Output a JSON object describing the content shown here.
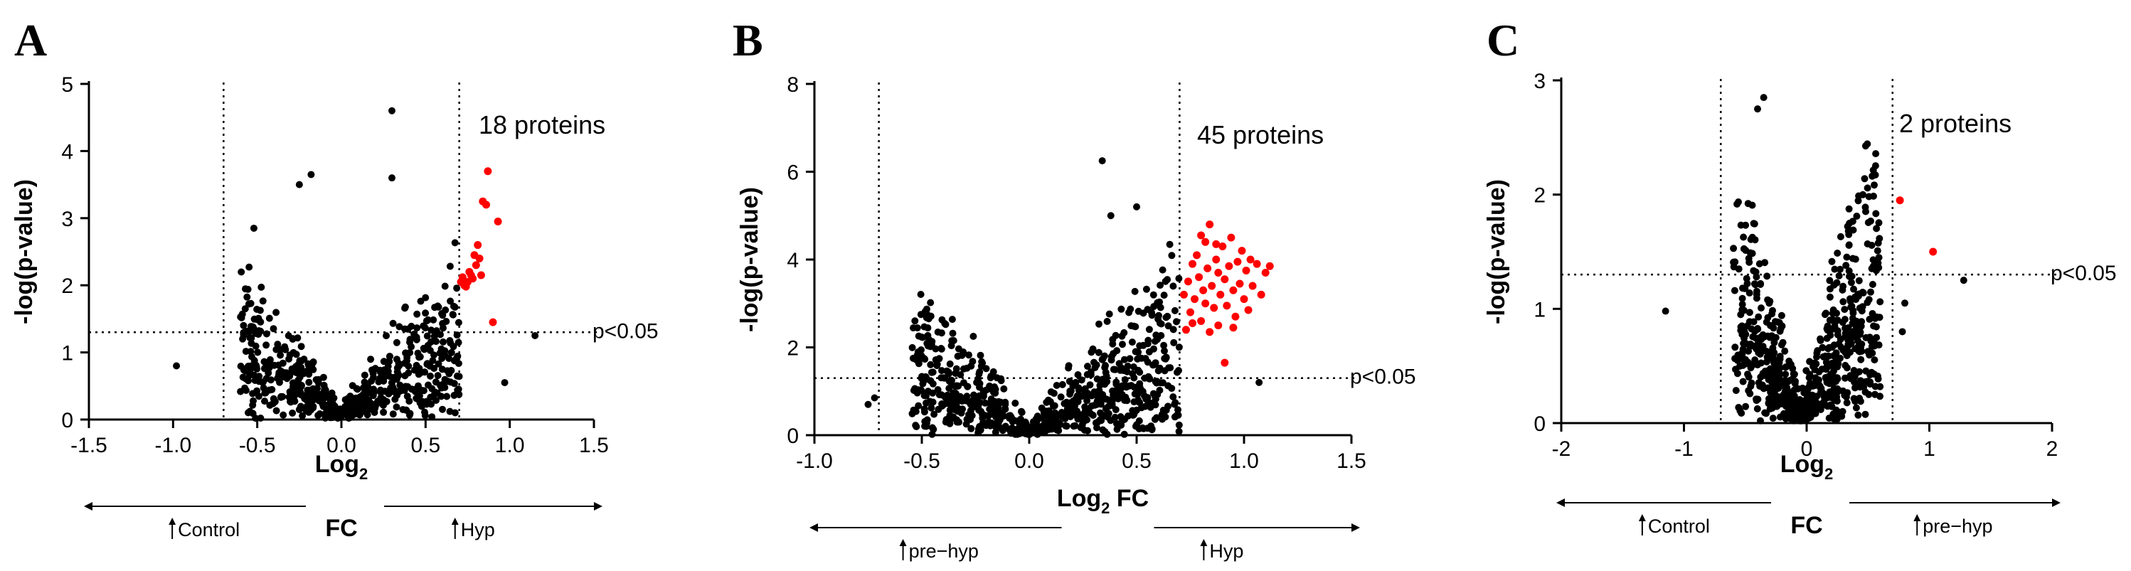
{
  "chart_data": [
    {
      "type": "scatter",
      "panel": "A",
      "title": "",
      "xlabel": "Log2",
      "xlabel_base": "Log",
      "xlabel_sub": "2",
      "xlabel_suffix": "FC",
      "ylabel": "-log(p-value)",
      "xlim": [
        -1.5,
        1.5
      ],
      "ylim": [
        0,
        5
      ],
      "xticks": [
        "-1.5",
        "-1.0",
        "-0.5",
        "0.0",
        "0.5",
        "1.0",
        "1.5"
      ],
      "xtick_values": [
        -1.5,
        -1.0,
        -0.5,
        0.0,
        0.5,
        1.0,
        1.5
      ],
      "yticks": [
        "0",
        "1",
        "2",
        "3",
        "4",
        "5"
      ],
      "ytick_values": [
        0,
        1,
        2,
        3,
        4,
        5
      ],
      "fc_thresholds": [
        -0.7,
        0.7
      ],
      "p_threshold": 1.3,
      "p_threshold_label": "p<0.05",
      "annotation": "18 proteins",
      "direction_left": "Control",
      "direction_right": "Hyp",
      "cloud": {
        "seed": 11,
        "n": 620,
        "xmin": -0.6,
        "xmax": 0.7,
        "center": 0.0,
        "vmin": 0.0,
        "scale": 1.9,
        "left_spread": 0.55,
        "right_spread": 0.6,
        "ymax": 3.4
      },
      "significant": [
        {
          "x": 0.71,
          "y": 2.05
        },
        {
          "x": 0.72,
          "y": 2.12
        },
        {
          "x": 0.74,
          "y": 1.98
        },
        {
          "x": 0.76,
          "y": 2.2
        },
        {
          "x": 0.78,
          "y": 2.1
        },
        {
          "x": 0.8,
          "y": 2.3
        },
        {
          "x": 0.81,
          "y": 2.6
        },
        {
          "x": 0.79,
          "y": 2.45
        },
        {
          "x": 0.73,
          "y": 2.0
        },
        {
          "x": 0.77,
          "y": 2.15
        },
        {
          "x": 0.83,
          "y": 2.15
        },
        {
          "x": 0.84,
          "y": 3.25
        },
        {
          "x": 0.86,
          "y": 3.2
        },
        {
          "x": 0.87,
          "y": 3.7
        },
        {
          "x": 0.93,
          "y": 2.95
        },
        {
          "x": 0.9,
          "y": 1.45
        },
        {
          "x": 0.75,
          "y": 2.05
        },
        {
          "x": 0.82,
          "y": 2.4
        }
      ],
      "extra_points": [
        {
          "x": -0.98,
          "y": 0.8
        },
        {
          "x": 0.3,
          "y": 4.6
        },
        {
          "x": 0.3,
          "y": 3.6
        },
        {
          "x": 0.97,
          "y": 0.55
        },
        {
          "x": 1.15,
          "y": 1.25
        },
        {
          "x": -0.52,
          "y": 2.85
        },
        {
          "x": -0.18,
          "y": 3.65
        },
        {
          "x": -0.25,
          "y": 3.5
        }
      ]
    },
    {
      "type": "scatter",
      "panel": "B",
      "title": "",
      "xlabel": "Log2 FC",
      "xlabel_base": "Log",
      "xlabel_sub": "2",
      "xlabel_suffix": " FC",
      "ylabel": "-log(p-value)",
      "xlim": [
        -1.0,
        1.5
      ],
      "ylim": [
        0,
        8
      ],
      "xticks": [
        "-1.0",
        "-0.5",
        "0.0",
        "0.5",
        "1.0",
        "1.5"
      ],
      "xtick_values": [
        -1.0,
        -0.5,
        0.0,
        0.5,
        1.0,
        1.5
      ],
      "yticks": [
        "0",
        "2",
        "4",
        "6",
        "8"
      ],
      "ytick_values": [
        0,
        2,
        4,
        6,
        8
      ],
      "fc_thresholds": [
        -0.7,
        0.7
      ],
      "p_threshold": 1.3,
      "p_threshold_label": "p<0.05",
      "annotation": "45 proteins",
      "direction_left": "pre−hyp",
      "direction_right": "Hyp",
      "cloud": {
        "seed": 23,
        "n": 760,
        "xmin": -0.55,
        "xmax": 0.7,
        "center": 0.0,
        "vmin": 0.0,
        "scale": 3.1,
        "left_spread": 0.5,
        "right_spread": 0.55,
        "ymax": 5.0
      },
      "significant": [
        {
          "x": 0.72,
          "y": 3.2
        },
        {
          "x": 0.74,
          "y": 3.5
        },
        {
          "x": 0.75,
          "y": 2.8
        },
        {
          "x": 0.76,
          "y": 3.9
        },
        {
          "x": 0.77,
          "y": 3.1
        },
        {
          "x": 0.78,
          "y": 4.1
        },
        {
          "x": 0.79,
          "y": 3.6
        },
        {
          "x": 0.8,
          "y": 2.6
        },
        {
          "x": 0.81,
          "y": 3.3
        },
        {
          "x": 0.82,
          "y": 4.4
        },
        {
          "x": 0.82,
          "y": 3.0
        },
        {
          "x": 0.83,
          "y": 3.8
        },
        {
          "x": 0.84,
          "y": 4.8
        },
        {
          "x": 0.85,
          "y": 3.4
        },
        {
          "x": 0.86,
          "y": 2.9
        },
        {
          "x": 0.87,
          "y": 4.0
        },
        {
          "x": 0.88,
          "y": 3.7
        },
        {
          "x": 0.88,
          "y": 2.5
        },
        {
          "x": 0.89,
          "y": 3.2
        },
        {
          "x": 0.9,
          "y": 4.3
        },
        {
          "x": 0.91,
          "y": 3.55
        },
        {
          "x": 0.92,
          "y": 2.95
        },
        {
          "x": 0.93,
          "y": 3.85
        },
        {
          "x": 0.94,
          "y": 4.5
        },
        {
          "x": 0.95,
          "y": 3.3
        },
        {
          "x": 0.96,
          "y": 2.7
        },
        {
          "x": 0.97,
          "y": 3.95
        },
        {
          "x": 0.98,
          "y": 3.45
        },
        {
          "x": 0.99,
          "y": 4.2
        },
        {
          "x": 1.0,
          "y": 3.1
        },
        {
          "x": 1.01,
          "y": 3.75
        },
        {
          "x": 1.02,
          "y": 2.85
        },
        {
          "x": 1.03,
          "y": 4.0
        },
        {
          "x": 1.04,
          "y": 3.4
        },
        {
          "x": 1.06,
          "y": 3.9
        },
        {
          "x": 1.08,
          "y": 3.2
        },
        {
          "x": 1.1,
          "y": 3.7
        },
        {
          "x": 1.12,
          "y": 3.85
        },
        {
          "x": 0.73,
          "y": 2.4
        },
        {
          "x": 0.76,
          "y": 2.55
        },
        {
          "x": 0.84,
          "y": 2.35
        },
        {
          "x": 0.91,
          "y": 1.65
        },
        {
          "x": 0.8,
          "y": 4.55
        },
        {
          "x": 0.87,
          "y": 4.35
        },
        {
          "x": 0.95,
          "y": 2.45
        }
      ],
      "extra_points": [
        {
          "x": 0.34,
          "y": 6.25
        },
        {
          "x": -0.75,
          "y": 0.7
        },
        {
          "x": -0.72,
          "y": 0.85
        },
        {
          "x": 1.07,
          "y": 1.2
        },
        {
          "x": 0.38,
          "y": 5.0
        },
        {
          "x": 0.5,
          "y": 5.2
        }
      ]
    },
    {
      "type": "scatter",
      "panel": "C",
      "title": "",
      "xlabel": "Log2",
      "xlabel_base": "Log",
      "xlabel_sub": "2",
      "xlabel_suffix": "FC",
      "ylabel": "-log(p-value)",
      "xlim": [
        -2,
        2
      ],
      "ylim": [
        0,
        3
      ],
      "xticks": [
        "-2",
        "-1",
        "0",
        "1",
        "2"
      ],
      "xtick_values": [
        -2,
        -1,
        0,
        1,
        2
      ],
      "yticks": [
        "0",
        "1",
        "2",
        "3"
      ],
      "ytick_values": [
        0,
        1,
        2,
        3
      ],
      "fc_thresholds": [
        -0.7,
        0.7
      ],
      "p_threshold": 1.3,
      "p_threshold_label": "p<0.05",
      "annotation": "2 proteins",
      "direction_left": "Control",
      "direction_right": "pre−hyp",
      "cloud": {
        "seed": 37,
        "n": 720,
        "xmin": -0.6,
        "xmax": 0.6,
        "center": -0.05,
        "vmin": 0.05,
        "scale": 1.4,
        "left_spread": 0.35,
        "right_spread": 0.35,
        "ymax": 2.9
      },
      "significant": [
        {
          "x": 0.76,
          "y": 1.95
        },
        {
          "x": 1.03,
          "y": 1.5
        }
      ],
      "extra_points": [
        {
          "x": -1.15,
          "y": 0.98
        },
        {
          "x": 1.28,
          "y": 1.25
        },
        {
          "x": 0.8,
          "y": 1.05
        },
        {
          "x": 0.78,
          "y": 0.8
        },
        {
          "x": -0.35,
          "y": 2.85
        },
        {
          "x": -0.4,
          "y": 2.75
        }
      ]
    }
  ]
}
